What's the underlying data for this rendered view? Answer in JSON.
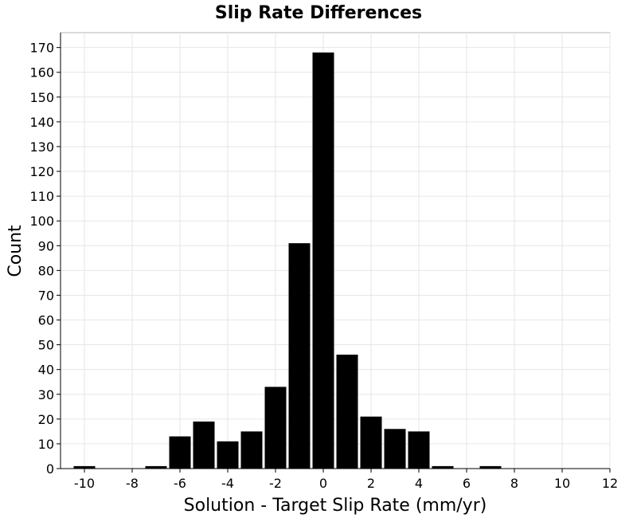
{
  "chart_data": {
    "type": "bar",
    "title": "Slip Rate Differences",
    "xlabel": "Solution - Target Slip Rate (mm/yr)",
    "ylabel": "Count",
    "xlim": [
      -11,
      12
    ],
    "ylim": [
      0,
      176
    ],
    "bin_width": 1,
    "x": [
      -10,
      -9,
      -8,
      -7,
      -6,
      -5,
      -4,
      -3,
      -2,
      -1,
      0,
      1,
      2,
      3,
      4,
      5,
      6,
      7,
      8,
      9,
      10,
      11
    ],
    "values": [
      1,
      0,
      0,
      1,
      13,
      19,
      11,
      15,
      33,
      91,
      168,
      46,
      21,
      16,
      15,
      1,
      0,
      1,
      0,
      0,
      0,
      0
    ],
    "xticks": [
      -10,
      -8,
      -6,
      -4,
      -2,
      0,
      2,
      4,
      6,
      8,
      10,
      12
    ],
    "yticks": [
      0,
      10,
      20,
      30,
      40,
      50,
      60,
      70,
      80,
      90,
      100,
      110,
      120,
      130,
      140,
      150,
      160,
      170
    ],
    "grid": true,
    "bar_color": "#000000"
  }
}
